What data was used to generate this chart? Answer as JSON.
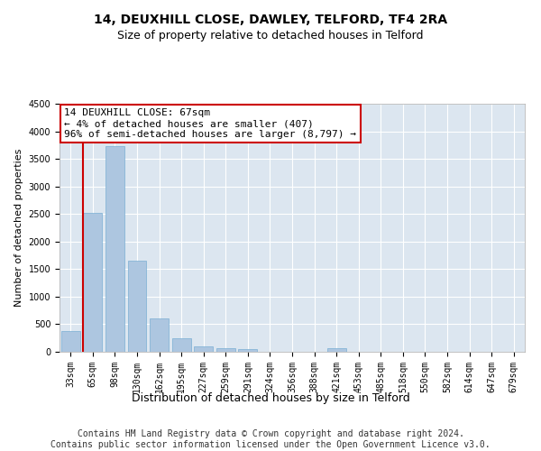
{
  "title": "14, DEUXHILL CLOSE, DAWLEY, TELFORD, TF4 2RA",
  "subtitle": "Size of property relative to detached houses in Telford",
  "xlabel": "Distribution of detached houses by size in Telford",
  "ylabel": "Number of detached properties",
  "categories": [
    "33sqm",
    "65sqm",
    "98sqm",
    "130sqm",
    "162sqm",
    "195sqm",
    "227sqm",
    "259sqm",
    "291sqm",
    "324sqm",
    "356sqm",
    "388sqm",
    "421sqm",
    "453sqm",
    "485sqm",
    "518sqm",
    "550sqm",
    "582sqm",
    "614sqm",
    "647sqm",
    "679sqm"
  ],
  "values": [
    380,
    2520,
    3730,
    1650,
    600,
    240,
    100,
    60,
    45,
    0,
    0,
    0,
    60,
    0,
    0,
    0,
    0,
    0,
    0,
    0,
    0
  ],
  "bar_color": "#adc6e0",
  "bar_edgecolor": "#7aafd4",
  "vline_color": "#cc0000",
  "annotation_text": "14 DEUXHILL CLOSE: 67sqm\n← 4% of detached houses are smaller (407)\n96% of semi-detached houses are larger (8,797) →",
  "annotation_box_color": "#ffffff",
  "annotation_box_edgecolor": "#cc0000",
  "ylim": [
    0,
    4500
  ],
  "yticks": [
    0,
    500,
    1000,
    1500,
    2000,
    2500,
    3000,
    3500,
    4000,
    4500
  ],
  "background_color": "#dce6f0",
  "footer_text": "Contains HM Land Registry data © Crown copyright and database right 2024.\nContains public sector information licensed under the Open Government Licence v3.0.",
  "title_fontsize": 10,
  "subtitle_fontsize": 9,
  "xlabel_fontsize": 9,
  "ylabel_fontsize": 8,
  "tick_fontsize": 7,
  "annotation_fontsize": 8,
  "footer_fontsize": 7
}
